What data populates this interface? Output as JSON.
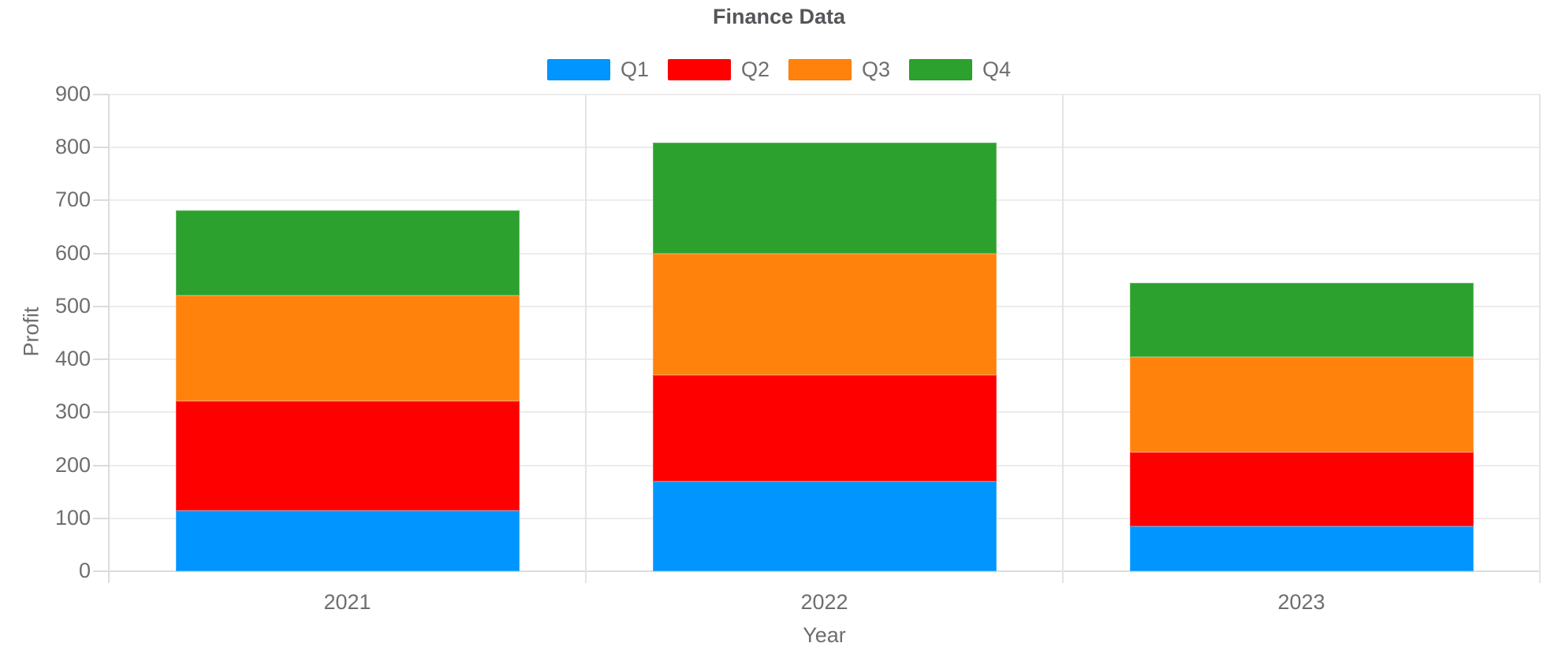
{
  "title": "Finance Data",
  "axes": {
    "x_title": "Year",
    "y_title": "Profit"
  },
  "legend": {
    "items": [
      "Q1",
      "Q2",
      "Q3",
      "Q4"
    ]
  },
  "chart_data": {
    "type": "bar",
    "stacked": true,
    "title": "Finance Data",
    "xlabel": "Year",
    "ylabel": "Profit",
    "categories": [
      "2021",
      "2022",
      "2023"
    ],
    "series": [
      {
        "name": "Q1",
        "color": "#0095FF",
        "values": [
          115,
          170,
          85
        ]
      },
      {
        "name": "Q2",
        "color": "#FE0000",
        "values": [
          207,
          200,
          140
        ]
      },
      {
        "name": "Q3",
        "color": "#FF820D",
        "values": [
          198,
          230,
          180
        ]
      },
      {
        "name": "Q4",
        "color": "#2DA12D",
        "values": [
          162,
          210,
          140
        ]
      }
    ],
    "stack_totals": [
      682,
      810,
      545
    ],
    "ylim": [
      0,
      900
    ],
    "yticks": [
      0,
      100,
      200,
      300,
      400,
      500,
      600,
      700,
      800,
      900
    ],
    "grid": true,
    "legend_position": "top",
    "colors": {
      "grid_line": "#ECECEC",
      "axis_line": "#DCDCDC",
      "axis_text": "#6E6E6E",
      "title_text": "#55565A"
    }
  }
}
